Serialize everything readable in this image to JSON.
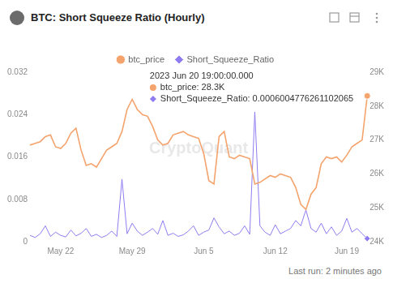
{
  "chart_data": {
    "type": "line",
    "title": "BTC: Short Squeeze Ratio (Hourly)",
    "footer": "Last run: 2 minutes ago",
    "watermark": "CryptoQuant",
    "annotations": [
      "2023 Jun 20 19:00:00.000",
      "btc_price: 28.3K",
      "Short_Squeeze_Ratio: 0.0006004776261102065"
    ],
    "legend": "top",
    "grid": false,
    "categories": [
      null,
      null,
      null,
      null,
      null,
      null,
      "May 22",
      null,
      null,
      null,
      null,
      null,
      null,
      null,
      null,
      null,
      null,
      null,
      null,
      null,
      "May 29",
      null,
      null,
      null,
      null,
      null,
      null,
      null,
      null,
      null,
      null,
      null,
      null,
      null,
      "Jun 5",
      null,
      null,
      null,
      null,
      null,
      null,
      null,
      null,
      null,
      null,
      null,
      null,
      null,
      "Jun 12",
      null,
      null,
      null,
      null,
      null,
      null,
      null,
      null,
      null,
      null,
      null,
      null,
      null,
      "Jun 19",
      null,
      null,
      null,
      null
    ],
    "ylim": [
      0,
      0.032
    ],
    "yticks": [
      0,
      0.008,
      0.016,
      0.024,
      0.032
    ],
    "y2lim": [
      24000,
      29000
    ],
    "y2ticks": [
      {
        "value": 24000,
        "label": "24K"
      },
      {
        "value": 25000,
        "label": "25K"
      },
      {
        "value": 26000,
        "label": "26K"
      },
      {
        "value": 27000,
        "label": "27K"
      },
      {
        "value": 28000,
        "label": "28K"
      },
      {
        "value": 29000,
        "label": "29K"
      }
    ],
    "series": [
      {
        "name": "btc_price",
        "type": "line",
        "color": "#f4a36c",
        "marker": "circle",
        "axis": "y2",
        "values": [
          26850,
          26900,
          26950,
          27100,
          27150,
          26800,
          26750,
          26900,
          27200,
          27350,
          26700,
          26250,
          26300,
          26200,
          26450,
          26700,
          26800,
          26900,
          27250,
          27900,
          28200,
          27900,
          27750,
          27700,
          27400,
          27000,
          26850,
          26900,
          27150,
          27200,
          27250,
          27150,
          27100,
          27050,
          26600,
          25800,
          25700,
          27100,
          27250,
          26500,
          26450,
          26550,
          26500,
          26450,
          25700,
          25750,
          25850,
          25950,
          25900,
          26000,
          25950,
          25900,
          25600,
          25100,
          24950,
          25400,
          25600,
          26300,
          26500,
          26450,
          26500,
          26350,
          26550,
          26800,
          26900,
          27000,
          28300
        ]
      },
      {
        "name": "Short_Squeeze_Ratio",
        "type": "line",
        "color": "#8e7cf0",
        "marker": "diamond",
        "values": [
          0.0012,
          0.0008,
          0.0015,
          0.003,
          0.001,
          0.0018,
          0.0012,
          0.0009,
          0.0022,
          0.0011,
          0.0016,
          0.0025,
          0.001,
          0.0014,
          0.0008,
          0.0012,
          0.002,
          0.001,
          0.0118,
          0.0015,
          0.0035,
          0.002,
          0.0012,
          0.0018,
          0.0025,
          0.0014,
          0.004,
          0.0012,
          0.0016,
          0.001,
          0.0013,
          0.002,
          0.003,
          0.0012,
          0.0018,
          0.0022,
          0.0045,
          0.0028,
          0.0015,
          0.002,
          0.0012,
          0.0016,
          0.003,
          0.0014,
          0.0245,
          0.003,
          0.0018,
          0.0012,
          0.0032,
          0.0015,
          0.002,
          0.0025,
          0.004,
          0.003,
          0.006,
          0.0025,
          0.0018,
          0.0035,
          0.0015,
          0.0028,
          0.0012,
          0.002,
          0.0044,
          0.0018,
          0.0025,
          0.0015,
          0.0006004776261102065
        ]
      }
    ]
  }
}
